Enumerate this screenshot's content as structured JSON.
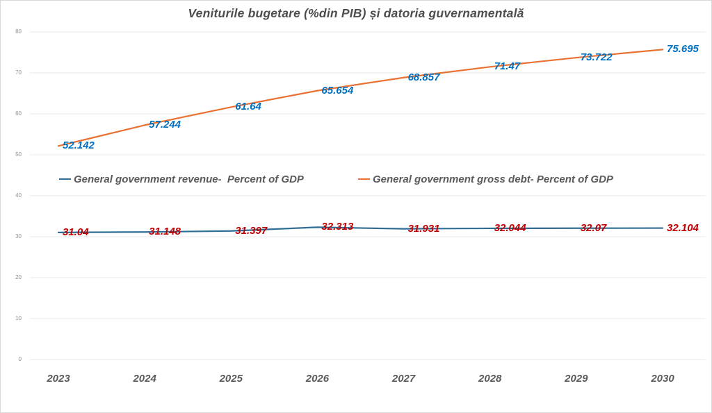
{
  "title": "Veniturile bugetare (%din PIB) și datoria guvernamentală",
  "colors": {
    "revenue_line": "#2D6E96",
    "debt_line": "#E97132",
    "revenue_label_text": "#C00000",
    "debt_label_text": "#0070C0",
    "axis_text": "#595959",
    "tick_text": "#8E8E8E",
    "gridline": "#EAEAEA",
    "frame_border": "#D9D9D9",
    "background": "#FFFFFF"
  },
  "chart_data": {
    "type": "line",
    "title": "Veniturile bugetare (%din PIB) și datoria guvernamentală",
    "categories": [
      "2023",
      "2024",
      "2025",
      "2026",
      "2027",
      "2028",
      "2029",
      "2030"
    ],
    "series": [
      {
        "name": "General government revenue-  Percent of GDP",
        "values": [
          31.04,
          31.148,
          31.397,
          32.313,
          31.931,
          32.044,
          32.07,
          32.104
        ],
        "color": "#2D6E96",
        "label_color": "#C00000"
      },
      {
        "name": "General government gross debt- Percent of GDP",
        "values": [
          52.142,
          57.244,
          61.64,
          65.654,
          68.857,
          71.47,
          73.722,
          75.695
        ],
        "color": "#E97132",
        "label_color": "#0070C0"
      }
    ],
    "xlabel": "",
    "ylabel": "",
    "ylim": [
      0,
      80
    ],
    "ytick_step": 10,
    "grid": true,
    "legend_position": "inside-center",
    "data_labels": true
  }
}
